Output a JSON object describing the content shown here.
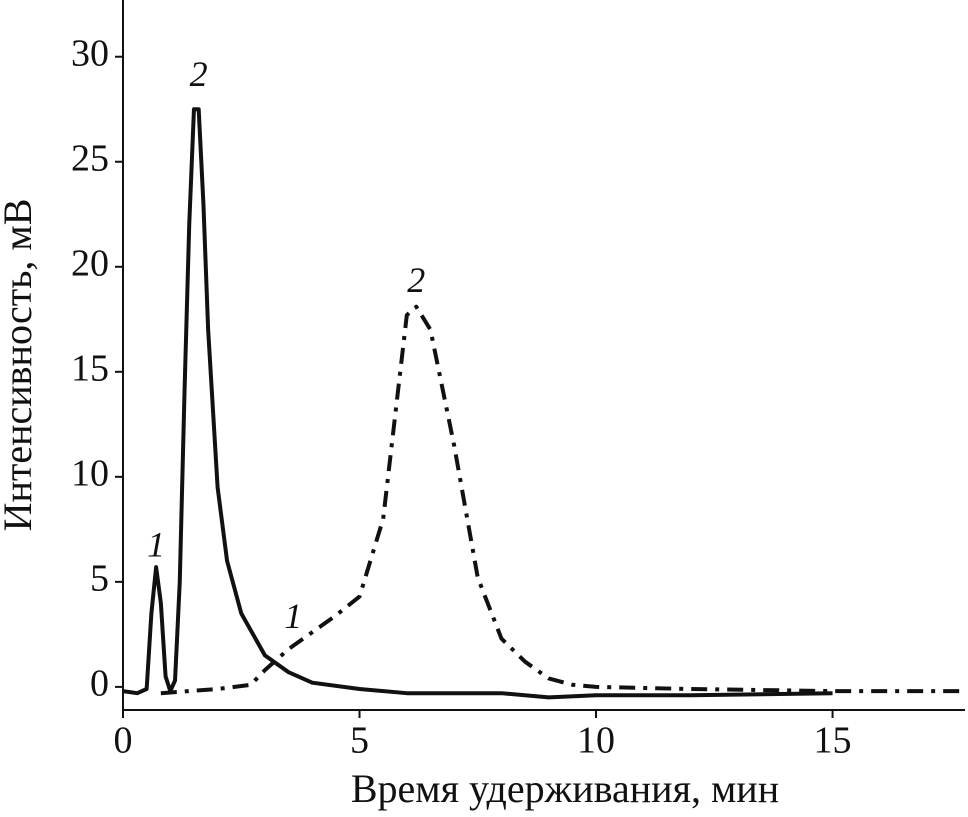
{
  "chart_data": {
    "type": "line",
    "x_label": "Время удерживания, мин",
    "y_label": "Интенсивность, мВ",
    "xlim": [
      0,
      17.8
    ],
    "ylim": [
      -1.1,
      32.7
    ],
    "xticks": [
      0,
      5,
      10,
      15
    ],
    "yticks": [
      0,
      5,
      10,
      15,
      20,
      25,
      30
    ],
    "grid": false,
    "series": [
      {
        "color": "#111111",
        "style": "solid",
        "x": [
          0,
          0.3,
          0.5,
          0.6,
          0.7,
          0.8,
          0.9,
          1.0,
          1.1,
          1.2,
          1.3,
          1.4,
          1.5,
          1.6,
          1.7,
          1.8,
          2.0,
          2.2,
          2.5,
          3.0,
          3.5,
          4,
          5,
          6,
          7,
          8,
          9,
          10,
          12,
          15
        ],
        "values": [
          -0.2,
          -0.3,
          -0.1,
          3.5,
          5.7,
          4.0,
          0.5,
          -0.2,
          0.3,
          5,
          14,
          22,
          27.5,
          27.5,
          23,
          17,
          9.5,
          6,
          3.5,
          1.5,
          0.7,
          0.2,
          -0.1,
          -0.3,
          -0.3,
          -0.3,
          -0.5,
          -0.4,
          -0.4,
          -0.3
        ]
      },
      {
        "color": "#111111",
        "style": "dashdot",
        "x": [
          0.8,
          2,
          2.7,
          3,
          3.5,
          4,
          4.5,
          5,
          5.5,
          6,
          6.2,
          6.5,
          7,
          7.5,
          8,
          8.5,
          9,
          9.5,
          10,
          12,
          15,
          17.8
        ],
        "values": [
          -0.3,
          -0.1,
          0.1,
          0.8,
          1.8,
          2.6,
          3.4,
          4.3,
          8,
          17.7,
          18.1,
          17,
          11.5,
          5.2,
          2.3,
          1.2,
          0.4,
          0.1,
          0,
          -0.1,
          -0.2,
          -0.2
        ]
      }
    ],
    "annotations": [
      {
        "text": "1",
        "x": 0.7,
        "y": 6.6
      },
      {
        "text": "2",
        "x": 1.6,
        "y": 29.0
      },
      {
        "text": "2",
        "x": 6.2,
        "y": 19.2
      },
      {
        "text": "1",
        "x": 3.6,
        "y": 3.2
      }
    ]
  }
}
